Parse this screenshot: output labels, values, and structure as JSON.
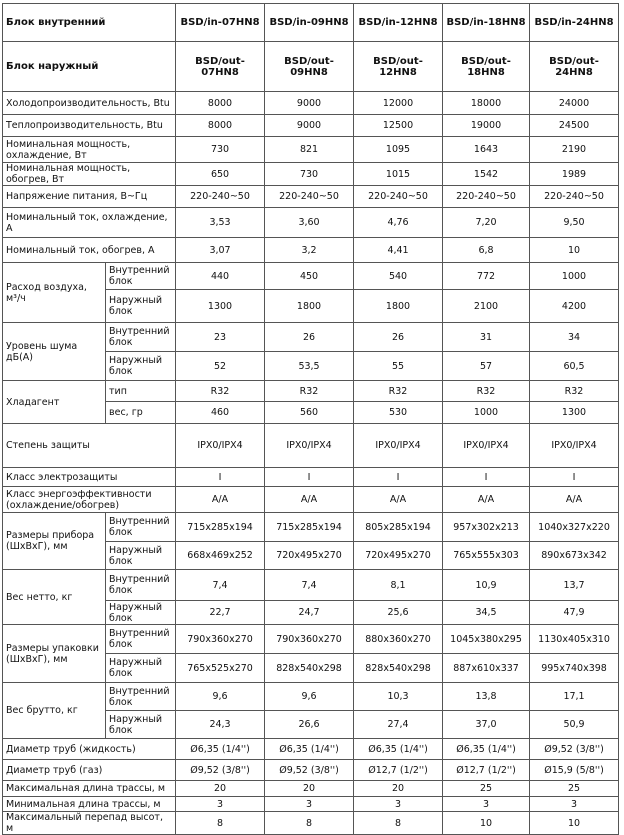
{
  "table": {
    "header": [
      {
        "label": "Блок внутренний",
        "models": [
          "BSD/in-07HN8",
          "BSD/in-09HN8",
          "BSD/in-12HN8",
          "BSD/in-18HN8",
          "BSD/in-24HN8"
        ]
      },
      {
        "label": "Блок наружный",
        "models": [
          "BSD/out-07HN8",
          "BSD/out-09HN8",
          "BSD/out-12HN8",
          "BSD/out-18HN8",
          "BSD/out-24HN8"
        ]
      }
    ],
    "rows": [
      {
        "label": "Холодопроизводительность,  Btu",
        "values": [
          "8000",
          "9000",
          "12000",
          "18000",
          "24000"
        ]
      },
      {
        "label": "Теплопроизводительность,  Btu",
        "values": [
          "8000",
          "9000",
          "12500",
          "19000",
          "24500"
        ]
      },
      {
        "label": "Номинальная мощность, охлаждение, Вт",
        "values": [
          "730",
          "821",
          "1095",
          "1643",
          "2190"
        ]
      },
      {
        "label": "Номинальная мощность, обогрев, Вт",
        "values": [
          "650",
          "730",
          "1015",
          "1542",
          "1989"
        ]
      },
      {
        "label": "Напряжение питания, В~Гц",
        "values": [
          "220-240~50",
          "220-240~50",
          "220-240~50",
          "220-240~50",
          "220-240~50"
        ]
      },
      {
        "label": "Номинальный ток, охлаждение, А",
        "values": [
          "3,53",
          "3,60",
          "4,76",
          "7,20",
          "9,50"
        ]
      },
      {
        "label": "Номинальный ток, обогрев, А",
        "values": [
          "3,07",
          "3,2",
          "4,41",
          "6,8",
          "10"
        ]
      },
      {
        "label": "Расход воздуха, м³/ч",
        "subrows": [
          {
            "label": "Внутренний блок",
            "values": [
              "440",
              "450",
              "540",
              "772",
              "1000"
            ]
          },
          {
            "label": "Наружный блок",
            "values": [
              "1300",
              "1800",
              "1800",
              "2100",
              "4200"
            ]
          }
        ]
      },
      {
        "label": "Уровень шума дБ(А)",
        "subrows": [
          {
            "label": "Внутренний блок",
            "values": [
              "23",
              "26",
              "26",
              "31",
              "34"
            ]
          },
          {
            "label": "Наружный блок",
            "values": [
              "52",
              "53,5",
              "55",
              "57",
              "60,5"
            ]
          }
        ]
      },
      {
        "label": "Хладагент",
        "subrows": [
          {
            "label": "тип",
            "values": [
              "R32",
              "R32",
              "R32",
              "R32",
              "R32"
            ]
          },
          {
            "label": "вес, гр",
            "values": [
              "460",
              "560",
              "530",
              "1000",
              "1300"
            ]
          }
        ]
      },
      {
        "label": "Степень защиты",
        "values": [
          "IPX0/IPX4",
          "IPX0/IPX4",
          "IPX0/IPX4",
          "IPX0/IPX4",
          "IPX0/IPX4"
        ]
      },
      {
        "label": "Класс электрозащиты",
        "values": [
          "I",
          "I",
          "I",
          "I",
          "I"
        ]
      },
      {
        "label": "Класс энергоэффективности (охлаждение/обогрев)",
        "values": [
          "A/A",
          "A/A",
          "A/A",
          "A/A",
          "A/A"
        ]
      },
      {
        "label": "Размеры прибора (ШхВхГ), мм",
        "subrows": [
          {
            "label": "Внутренний блок",
            "values": [
              "715x285x194",
              "715x285x194",
              "805x285x194",
              "957x302x213",
              "1040x327x220"
            ]
          },
          {
            "label": "Наружный блок",
            "values": [
              "668x469x252",
              "720x495x270",
              "720x495x270",
              "765x555x303",
              "890x673x342"
            ]
          }
        ]
      },
      {
        "label": "Вес нетто, кг",
        "subrows": [
          {
            "label": "Внутренний блок",
            "values": [
              "7,4",
              "7,4",
              "8,1",
              "10,9",
              "13,7"
            ]
          },
          {
            "label": "Наружный блок",
            "values": [
              "22,7",
              "24,7",
              "25,6",
              "34,5",
              "47,9"
            ]
          }
        ]
      },
      {
        "label": "Размеры упаковки (ШхВхГ), мм",
        "subrows": [
          {
            "label": "Внутренний блок",
            "values": [
              "790x360x270",
              "790x360x270",
              "880x360x270",
              "1045x380x295",
              "1130x405x310"
            ]
          },
          {
            "label": "Наружный блок",
            "values": [
              "765x525x270",
              "828x540x298",
              "828x540x298",
              "887x610x337",
              "995x740x398"
            ]
          }
        ]
      },
      {
        "label": "Вес брутто, кг",
        "subrows": [
          {
            "label": "Внутренний блок",
            "values": [
              "9,6",
              "9,6",
              "10,3",
              "13,8",
              "17,1"
            ]
          },
          {
            "label": "Наружный блок",
            "values": [
              "24,3",
              "26,6",
              "27,4",
              "37,0",
              "50,9"
            ]
          }
        ]
      },
      {
        "label": "Диаметр труб (жидкость)",
        "values": [
          "Ø6,35 (1/4'')",
          "Ø6,35 (1/4'')",
          "Ø6,35 (1/4'')",
          "Ø6,35 (1/4'')",
          "Ø9,52 (3/8'')"
        ]
      },
      {
        "label": "Диаметр труб (газ)",
        "values": [
          "Ø9,52 (3/8'')",
          "Ø9,52 (3/8'')",
          "Ø12,7 (1/2'')",
          "Ø12,7 (1/2'')",
          "Ø15,9 (5/8'')"
        ]
      },
      {
        "label": "Максимальная длина трассы, м",
        "values": [
          "20",
          "20",
          "20",
          "25",
          "25"
        ]
      },
      {
        "label": "Минимальная длина трассы, м",
        "values": [
          "3",
          "3",
          "3",
          "3",
          "3"
        ]
      },
      {
        "label": "Максимальный перепад высот, м",
        "values": [
          "8",
          "8",
          "8",
          "10",
          "10"
        ]
      }
    ]
  }
}
